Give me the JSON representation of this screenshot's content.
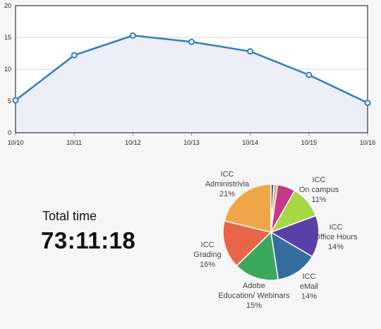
{
  "total": {
    "label": "Total time",
    "value": "73:11:18"
  },
  "colors": {
    "line": "#2f7ec1",
    "area": "#eeeef8",
    "grid": "#d6d6d6",
    "frame": "#444444",
    "plot_bg": "#ffffff"
  },
  "chart_data": [
    {
      "type": "area",
      "x": [
        "10/10",
        "10/11",
        "10/12",
        "10/13",
        "10/14",
        "10/15",
        "10/16"
      ],
      "series": [
        {
          "values": [
            5.1,
            12.2,
            15.3,
            14.3,
            12.8,
            9.1,
            4.7
          ]
        }
      ],
      "yticks": [
        "0",
        "5",
        "10",
        "15",
        "20"
      ],
      "ylim": [
        0,
        20
      ],
      "grid": true,
      "legend": "none",
      "title": "",
      "xlabel": "",
      "ylabel": ""
    },
    {
      "type": "pie",
      "slices": [
        {
          "name": "",
          "value": 1,
          "color": "#2c6aa6",
          "label": []
        },
        {
          "name": "",
          "value": 1.2,
          "color": "#e8a84a",
          "label": []
        },
        {
          "name": "",
          "value": 6,
          "color": "#c7378a",
          "label": []
        },
        {
          "name": "ICC On campus",
          "value": 11,
          "color": "#a6d845",
          "label": [
            "ICC",
            "On campus",
            "11%"
          ]
        },
        {
          "name": "ICC Office Hours",
          "value": 14,
          "color": "#5a3fa8",
          "label": [
            "ICC",
            "Office Hours",
            "14%"
          ]
        },
        {
          "name": "ICC eMail",
          "value": 14,
          "color": "#356d9e",
          "label": [
            "ICC",
            "eMail",
            "14%"
          ]
        },
        {
          "name": "Adobe Education/ Webinars",
          "value": 15,
          "color": "#3aa95e",
          "label": [
            "Adobe",
            "Education/ Webinars",
            "15%"
          ]
        },
        {
          "name": "ICC Grading",
          "value": 16,
          "color": "#ea6547",
          "label": [
            "ICC",
            "Grading",
            "16%"
          ]
        },
        {
          "name": "ICC Administrivia",
          "value": 21,
          "color": "#efa74a",
          "label": [
            "ICC",
            "Administrivia",
            "21%"
          ]
        }
      ],
      "legend": "none",
      "title": ""
    }
  ]
}
